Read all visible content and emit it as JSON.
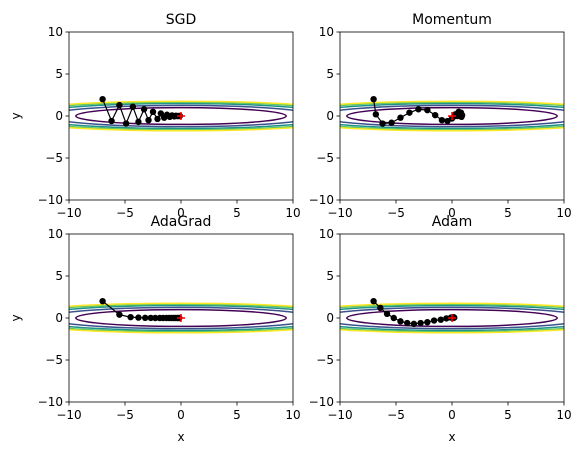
{
  "chart_data": [
    {
      "type": "scatter",
      "title": "SGD",
      "xlabel": "",
      "ylabel": "y",
      "xlim": [
        -10,
        10
      ],
      "ylim": [
        -10,
        10
      ],
      "xticks": [
        "−10",
        "−5",
        "0",
        "5",
        "10"
      ],
      "yticks": [
        "−10",
        "−5",
        "0",
        "5",
        "10"
      ],
      "grid": false,
      "contour": true,
      "minimum": [
        0,
        0
      ],
      "path": [
        [
          -7.0,
          2.0
        ],
        [
          -6.2,
          -0.6
        ],
        [
          -5.5,
          1.3
        ],
        [
          -4.9,
          -0.9
        ],
        [
          -4.3,
          1.1
        ],
        [
          -3.8,
          -0.7
        ],
        [
          -3.3,
          0.8
        ],
        [
          -2.9,
          -0.5
        ],
        [
          -2.5,
          0.5
        ],
        [
          -2.1,
          -0.35
        ],
        [
          -1.8,
          0.3
        ],
        [
          -1.5,
          -0.2
        ],
        [
          -1.25,
          0.15
        ],
        [
          -1.0,
          -0.1
        ],
        [
          -0.8,
          0.07
        ],
        [
          -0.6,
          -0.05
        ],
        [
          -0.45,
          0.03
        ],
        [
          -0.3,
          -0.02
        ],
        [
          -0.2,
          0.01
        ],
        [
          -0.1,
          0.0
        ]
      ]
    },
    {
      "type": "scatter",
      "title": "Momentum",
      "xlabel": "",
      "ylabel": "",
      "xlim": [
        -10,
        10
      ],
      "ylim": [
        -10,
        10
      ],
      "xticks": [
        "−10",
        "−5",
        "0",
        "5",
        "10"
      ],
      "yticks": [
        "−10",
        "−5",
        "0",
        "5",
        "10"
      ],
      "grid": false,
      "contour": true,
      "minimum": [
        0,
        0
      ],
      "path": [
        [
          -7.0,
          2.0
        ],
        [
          -6.8,
          0.2
        ],
        [
          -6.2,
          -0.9
        ],
        [
          -5.4,
          -0.8
        ],
        [
          -4.6,
          -0.2
        ],
        [
          -3.8,
          0.4
        ],
        [
          -3.0,
          0.8
        ],
        [
          -2.2,
          0.7
        ],
        [
          -1.5,
          0.1
        ],
        [
          -0.9,
          -0.5
        ],
        [
          -0.4,
          -0.6
        ],
        [
          0.0,
          -0.3
        ],
        [
          0.3,
          0.2
        ],
        [
          0.6,
          0.5
        ],
        [
          0.8,
          0.4
        ],
        [
          0.9,
          0.1
        ],
        [
          0.85,
          -0.1
        ],
        [
          0.7,
          0.0
        ],
        [
          0.5,
          0.0
        ],
        [
          0.3,
          0.0
        ]
      ]
    },
    {
      "type": "scatter",
      "title": "AdaGrad",
      "xlabel": "",
      "ylabel": "y",
      "xlim": [
        -10,
        10
      ],
      "ylim": [
        -10,
        10
      ],
      "xticks": [
        "−10",
        "−5",
        "0",
        "5",
        "10"
      ],
      "yticks": [
        "−10",
        "−5",
        "0",
        "5",
        "10"
      ],
      "grid": false,
      "contour": true,
      "minimum": [
        0,
        0
      ],
      "path": [
        [
          -7.0,
          2.0
        ],
        [
          -5.5,
          0.4
        ],
        [
          -4.5,
          0.1
        ],
        [
          -3.8,
          0.05
        ],
        [
          -3.2,
          0.02
        ],
        [
          -2.7,
          0.01
        ],
        [
          -2.3,
          0.0
        ],
        [
          -1.9,
          0.0
        ],
        [
          -1.6,
          0.0
        ],
        [
          -1.3,
          0.0
        ],
        [
          -1.05,
          0.0
        ],
        [
          -0.85,
          0.0
        ],
        [
          -0.65,
          0.0
        ],
        [
          -0.5,
          0.0
        ],
        [
          -0.35,
          0.0
        ],
        [
          -0.25,
          0.0
        ],
        [
          -0.15,
          0.0
        ]
      ]
    },
    {
      "type": "scatter",
      "title": "Adam",
      "xlabel": "x",
      "ylabel": "",
      "xlim": [
        -10,
        10
      ],
      "ylim": [
        -10,
        10
      ],
      "xticks": [
        "−10",
        "−5",
        "0",
        "5",
        "10"
      ],
      "yticks": [
        "−10",
        "−5",
        "0",
        "5",
        "10"
      ],
      "grid": false,
      "contour": true,
      "minimum": [
        0,
        0
      ],
      "path": [
        [
          -7.0,
          2.0
        ],
        [
          -6.4,
          1.2
        ],
        [
          -5.8,
          0.5
        ],
        [
          -5.2,
          0.0
        ],
        [
          -4.6,
          -0.4
        ],
        [
          -4.0,
          -0.6
        ],
        [
          -3.4,
          -0.7
        ],
        [
          -2.8,
          -0.6
        ],
        [
          -2.2,
          -0.5
        ],
        [
          -1.6,
          -0.3
        ],
        [
          -1.0,
          -0.2
        ],
        [
          -0.5,
          -0.05
        ],
        [
          -0.1,
          0.05
        ],
        [
          0.15,
          0.1
        ],
        [
          0.2,
          0.05
        ],
        [
          0.1,
          0.0
        ]
      ]
    }
  ],
  "bottom_xlabels": [
    "x",
    "x"
  ],
  "contour_levels": [
    {
      "a": 1.0,
      "color": "#440154"
    },
    {
      "a": 1.6,
      "color": "#3b528b"
    },
    {
      "a": 2.2,
      "color": "#21918c"
    },
    {
      "a": 2.7,
      "color": "#5ec962"
    },
    {
      "a": 3.1,
      "color": "#fde725"
    }
  ],
  "colors": {
    "path": "#000000",
    "minimum": "#ff0000"
  }
}
